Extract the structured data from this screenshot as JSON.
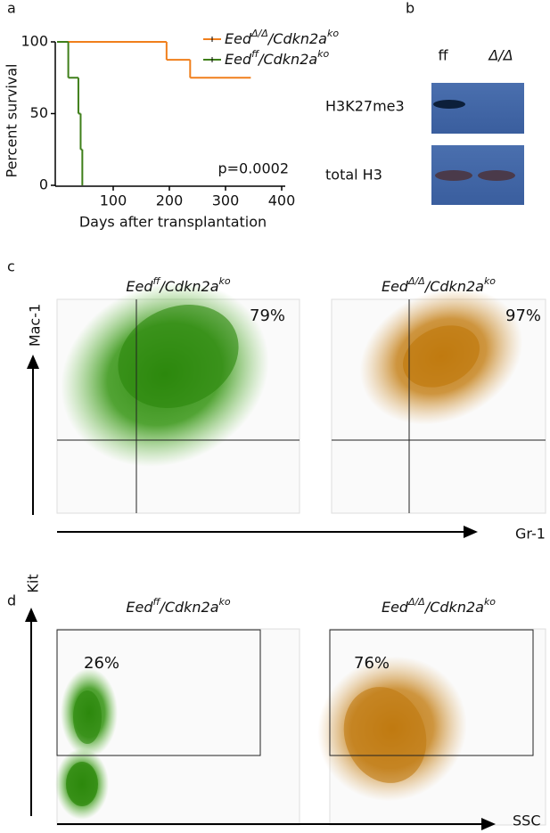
{
  "panel_labels": [
    "a",
    "b",
    "c",
    "d"
  ],
  "chart_data": {
    "type": "line",
    "step": true,
    "ylabel": "Percent survival",
    "xlabel": "Days after transplantation",
    "xlim": [
      0,
      400
    ],
    "ylim": [
      0,
      100
    ],
    "xticks": [
      100,
      200,
      300,
      400
    ],
    "yticks": [
      0,
      50,
      100
    ],
    "annotation": "p=0.0002",
    "series": [
      {
        "name": [
          "Eed",
          "Δ/Δ",
          "/Cdkn2a",
          "ko"
        ],
        "color": "#f07f1c",
        "x": [
          0,
          195,
          237,
          345
        ],
        "values": [
          100,
          87.5,
          75,
          75
        ]
      },
      {
        "name": [
          "Eed",
          "ff",
          "/Cdkn2a",
          "ko"
        ],
        "color": "#3f7f1a",
        "x": [
          0,
          20,
          38,
          42,
          45
        ],
        "values": [
          100,
          75,
          50,
          25,
          0
        ]
      }
    ]
  },
  "blot": {
    "lanes": [
      "ff",
      "Δ/Δ"
    ],
    "rows": [
      "H3K27me3",
      "total H3"
    ]
  },
  "flow": [
    {
      "x_label": "Gr-1",
      "y_label": "Mac-1",
      "plots": [
        {
          "title": [
            "Eed",
            "ff",
            "/Cdkn2a",
            "ko"
          ],
          "percent": "79%"
        },
        {
          "title": [
            "Eed",
            "Δ/Δ",
            "/Cdkn2a",
            "ko"
          ],
          "percent": "97%"
        }
      ]
    },
    {
      "x_label": "SSC",
      "y_label": "Kit",
      "plots": [
        {
          "title": [
            "Eed",
            "ff",
            "/Cdkn2a",
            "ko"
          ],
          "percent": "26%"
        },
        {
          "title": [
            "Eed",
            "Δ/Δ",
            "/Cdkn2a",
            "ko"
          ],
          "percent": "76%"
        }
      ]
    }
  ]
}
